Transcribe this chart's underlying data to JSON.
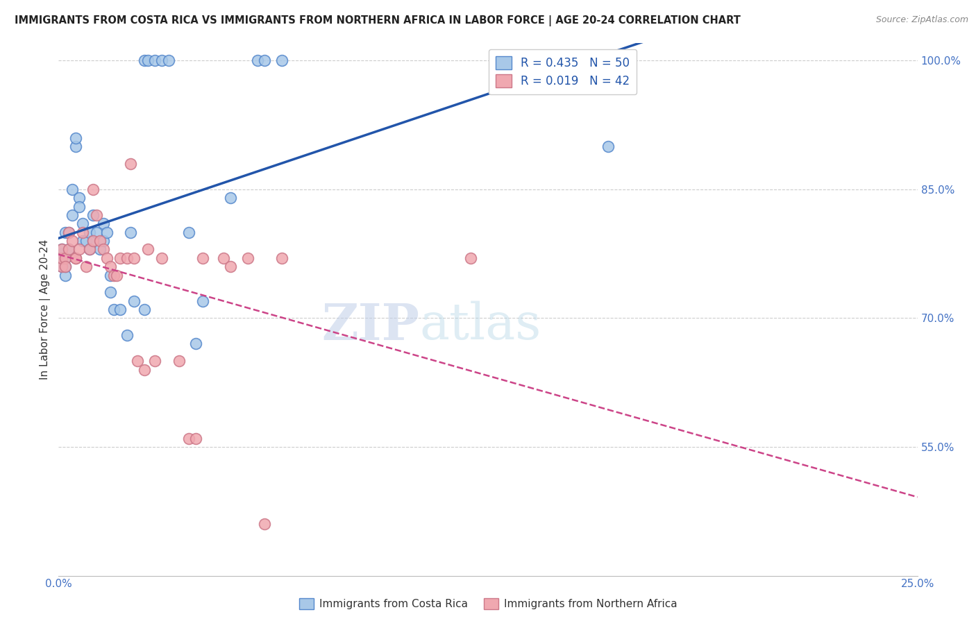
{
  "title": "IMMIGRANTS FROM COSTA RICA VS IMMIGRANTS FROM NORTHERN AFRICA IN LABOR FORCE | AGE 20-24 CORRELATION CHART",
  "source": "Source: ZipAtlas.com",
  "ylabel": "In Labor Force | Age 20-24",
  "xlim": [
    0.0,
    0.25
  ],
  "ylim": [
    0.4,
    1.02
  ],
  "yticks": [
    0.55,
    0.7,
    0.85,
    1.0
  ],
  "ytick_labels": [
    "55.0%",
    "70.0%",
    "85.0%",
    "100.0%"
  ],
  "xticks": [
    0.0,
    0.05,
    0.1,
    0.15,
    0.2,
    0.25
  ],
  "xtick_labels": [
    "0.0%",
    "",
    "",
    "",
    "",
    "25.0%"
  ],
  "blue_color": "#a8c8e8",
  "pink_color": "#f0a8b0",
  "blue_edge_color": "#5588cc",
  "pink_edge_color": "#cc7788",
  "blue_line_color": "#2255aa",
  "pink_line_color": "#cc4488",
  "watermark_zip": "ZIP",
  "watermark_atlas": "atlas",
  "costa_rica_x": [
    0.001,
    0.001,
    0.001,
    0.001,
    0.001,
    0.002,
    0.002,
    0.002,
    0.002,
    0.003,
    0.003,
    0.004,
    0.004,
    0.005,
    0.005,
    0.006,
    0.006,
    0.007,
    0.007,
    0.008,
    0.009,
    0.009,
    0.01,
    0.01,
    0.011,
    0.012,
    0.013,
    0.013,
    0.014,
    0.015,
    0.015,
    0.016,
    0.018,
    0.02,
    0.021,
    0.022,
    0.025,
    0.025,
    0.026,
    0.028,
    0.03,
    0.032,
    0.038,
    0.04,
    0.042,
    0.05,
    0.058,
    0.06,
    0.065,
    0.16
  ],
  "costa_rica_y": [
    0.775,
    0.76,
    0.77,
    0.78,
    0.77,
    0.8,
    0.75,
    0.77,
    0.76,
    0.8,
    0.78,
    0.82,
    0.85,
    0.9,
    0.91,
    0.84,
    0.83,
    0.79,
    0.81,
    0.79,
    0.78,
    0.8,
    0.79,
    0.82,
    0.8,
    0.78,
    0.79,
    0.81,
    0.8,
    0.75,
    0.73,
    0.71,
    0.71,
    0.68,
    0.8,
    0.72,
    0.71,
    1.0,
    1.0,
    1.0,
    1.0,
    1.0,
    0.8,
    0.67,
    0.72,
    0.84,
    1.0,
    1.0,
    1.0,
    0.9
  ],
  "northern_africa_x": [
    0.001,
    0.001,
    0.001,
    0.002,
    0.002,
    0.003,
    0.003,
    0.004,
    0.005,
    0.005,
    0.006,
    0.007,
    0.008,
    0.009,
    0.01,
    0.01,
    0.011,
    0.012,
    0.013,
    0.014,
    0.015,
    0.016,
    0.017,
    0.018,
    0.02,
    0.021,
    0.022,
    0.023,
    0.025,
    0.026,
    0.028,
    0.03,
    0.035,
    0.038,
    0.04,
    0.042,
    0.048,
    0.05,
    0.055,
    0.06,
    0.065,
    0.12
  ],
  "northern_africa_y": [
    0.76,
    0.77,
    0.78,
    0.77,
    0.76,
    0.8,
    0.78,
    0.79,
    0.77,
    0.77,
    0.78,
    0.8,
    0.76,
    0.78,
    0.79,
    0.85,
    0.82,
    0.79,
    0.78,
    0.77,
    0.76,
    0.75,
    0.75,
    0.77,
    0.77,
    0.88,
    0.77,
    0.65,
    0.64,
    0.78,
    0.65,
    0.77,
    0.65,
    0.56,
    0.56,
    0.77,
    0.77,
    0.76,
    0.77,
    0.46,
    0.77,
    0.77
  ]
}
